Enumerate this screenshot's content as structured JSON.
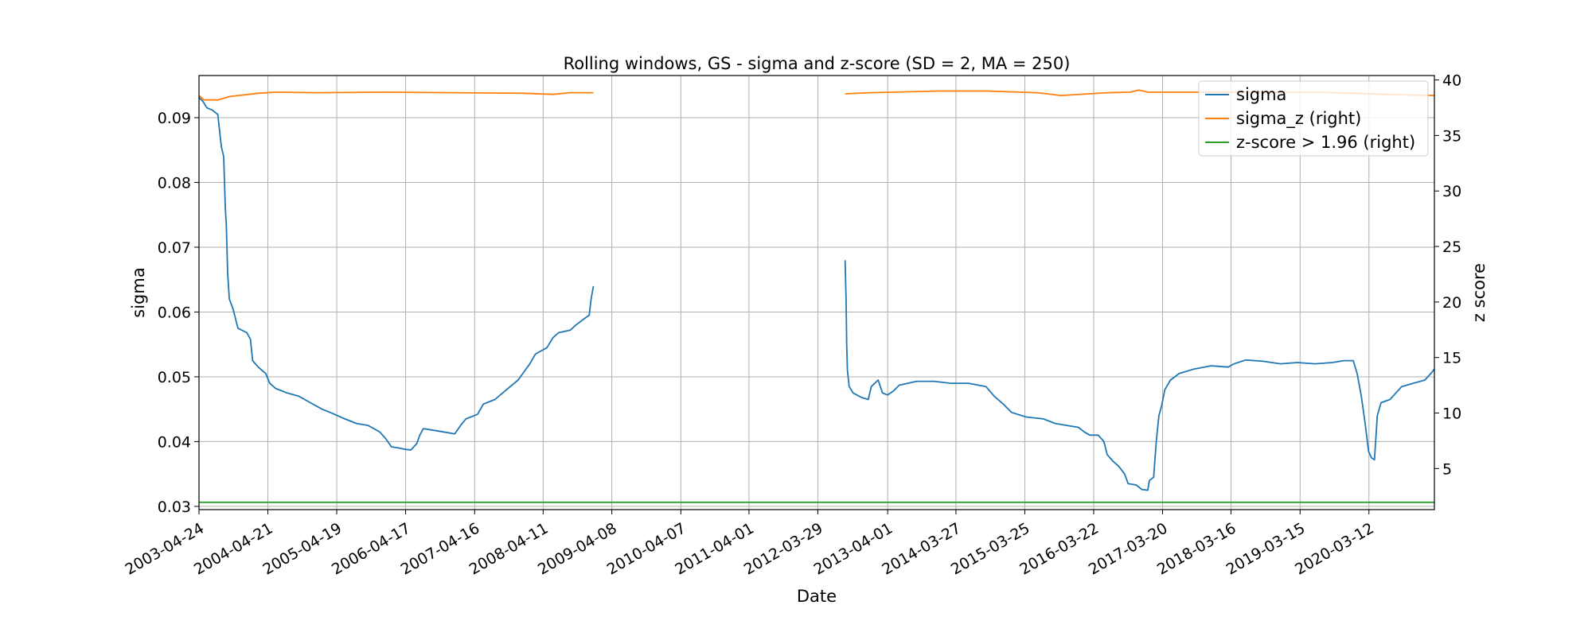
{
  "chart_data": {
    "type": "line",
    "title": "Rolling windows, GS - sigma and z-score (SD = 2, MA = 250)",
    "xlabel": "Date",
    "ylabel": "sigma",
    "ylabel_right": "z score",
    "x_tick_labels": [
      "2003-04-24",
      "2004-04-21",
      "2005-04-19",
      "2006-04-17",
      "2007-04-16",
      "2008-04-11",
      "2009-04-08",
      "2010-04-07",
      "2011-04-01",
      "2012-03-29",
      "2013-04-01",
      "2014-03-27",
      "2015-03-25",
      "2016-03-22",
      "2017-03-20",
      "2018-03-16",
      "2019-03-15",
      "2020-03-12"
    ],
    "xlim": [
      "2003-04-24",
      "2021-02-20"
    ],
    "ylim": [
      0.0295,
      0.0965
    ],
    "y_ticks": [
      0.03,
      0.04,
      0.05,
      0.06,
      0.07,
      0.08,
      0.09
    ],
    "y_tick_labels": [
      "0.03",
      "0.04",
      "0.05",
      "0.06",
      "0.07",
      "0.08",
      "0.09"
    ],
    "ylim_right": [
      1.3,
      40.4
    ],
    "y_ticks_right": [
      5,
      10,
      15,
      20,
      25,
      30,
      35,
      40
    ],
    "y_tick_labels_right": [
      "5",
      "10",
      "15",
      "20",
      "25",
      "30",
      "35",
      "40"
    ],
    "grid": true,
    "legend_position": "top-right",
    "series": [
      {
        "name": "sigma",
        "axis": "left",
        "color": "#1f77b4",
        "segments": [
          [
            [
              "2003-04-24",
              0.0931
            ],
            [
              "2003-05-15",
              0.0925
            ],
            [
              "2003-06-05",
              0.0915
            ],
            [
              "2003-07-01",
              0.0912
            ],
            [
              "2003-08-01",
              0.0905
            ],
            [
              "2003-08-20",
              0.0855
            ],
            [
              "2003-09-01",
              0.084
            ],
            [
              "2003-09-10",
              0.076
            ],
            [
              "2003-09-15",
              0.0735
            ],
            [
              "2003-09-22",
              0.066
            ],
            [
              "2003-10-01",
              0.062
            ],
            [
              "2003-10-20",
              0.0605
            ],
            [
              "2003-11-15",
              0.0575
            ],
            [
              "2004-01-01",
              0.0568
            ],
            [
              "2004-01-20",
              0.0558
            ],
            [
              "2004-02-01",
              0.0525
            ],
            [
              "2004-03-01",
              0.0515
            ],
            [
              "2004-04-10",
              0.0505
            ],
            [
              "2004-05-01",
              0.049
            ],
            [
              "2004-06-01",
              0.0482
            ],
            [
              "2004-08-01",
              0.0475
            ],
            [
              "2004-10-01",
              0.047
            ],
            [
              "2004-12-01",
              0.046
            ],
            [
              "2005-02-01",
              0.045
            ],
            [
              "2005-04-01",
              0.0443
            ],
            [
              "2005-06-01",
              0.0435
            ],
            [
              "2005-08-01",
              0.0428
            ],
            [
              "2005-10-01",
              0.0425
            ],
            [
              "2005-12-01",
              0.0415
            ],
            [
              "2006-01-01",
              0.0405
            ],
            [
              "2006-02-01",
              0.0392
            ],
            [
              "2006-03-15",
              0.039
            ],
            [
              "2006-04-15",
              0.0388
            ],
            [
              "2006-05-15",
              0.0387
            ],
            [
              "2006-06-15",
              0.0397
            ],
            [
              "2006-07-01",
              0.041
            ],
            [
              "2006-07-20",
              0.042
            ],
            [
              "2006-09-01",
              0.0418
            ],
            [
              "2006-11-01",
              0.0415
            ],
            [
              "2007-01-01",
              0.0412
            ],
            [
              "2007-02-01",
              0.0425
            ],
            [
              "2007-03-01",
              0.0435
            ],
            [
              "2007-05-01",
              0.0442
            ],
            [
              "2007-06-01",
              0.0458
            ],
            [
              "2007-08-01",
              0.0465
            ],
            [
              "2007-10-01",
              0.048
            ],
            [
              "2007-12-01",
              0.0495
            ],
            [
              "2008-02-01",
              0.052
            ],
            [
              "2008-03-01",
              0.0535
            ],
            [
              "2008-05-01",
              0.0545
            ],
            [
              "2008-06-01",
              0.056
            ],
            [
              "2008-07-01",
              0.0568
            ],
            [
              "2008-09-01",
              0.0572
            ],
            [
              "2008-10-01",
              0.058
            ],
            [
              "2008-11-15",
              0.059
            ],
            [
              "2008-12-10",
              0.0595
            ],
            [
              "2008-12-20",
              0.062
            ],
            [
              "2009-01-01",
              0.064
            ]
          ],
          [
            [
              "2012-08-20",
              0.068
            ],
            [
              "2012-08-25",
              0.062
            ],
            [
              "2012-08-28",
              0.055
            ],
            [
              "2012-09-01",
              0.051
            ],
            [
              "2012-09-10",
              0.0485
            ],
            [
              "2012-10-01",
              0.0475
            ],
            [
              "2012-11-15",
              0.0468
            ],
            [
              "2012-12-20",
              0.0465
            ],
            [
              "2013-01-05",
              0.0485
            ],
            [
              "2013-02-10",
              0.0495
            ],
            [
              "2013-03-05",
              0.0475
            ],
            [
              "2013-04-01",
              0.0472
            ],
            [
              "2013-05-01",
              0.0478
            ],
            [
              "2013-06-01",
              0.0487
            ],
            [
              "2013-09-01",
              0.0493
            ],
            [
              "2013-12-01",
              0.0493
            ],
            [
              "2014-03-01",
              0.049
            ],
            [
              "2014-06-01",
              0.049
            ],
            [
              "2014-09-01",
              0.0485
            ],
            [
              "2014-10-15",
              0.047
            ],
            [
              "2014-12-01",
              0.0458
            ],
            [
              "2015-01-15",
              0.0445
            ],
            [
              "2015-04-01",
              0.0438
            ],
            [
              "2015-07-01",
              0.0435
            ],
            [
              "2015-09-01",
              0.0428
            ],
            [
              "2015-11-01",
              0.0425
            ],
            [
              "2016-01-01",
              0.0422
            ],
            [
              "2016-02-01",
              0.0415
            ],
            [
              "2016-03-01",
              0.041
            ],
            [
              "2016-04-15",
              0.041
            ],
            [
              "2016-05-15",
              0.04
            ],
            [
              "2016-06-01",
              0.038
            ],
            [
              "2016-07-01",
              0.037
            ],
            [
              "2016-08-01",
              0.0362
            ],
            [
              "2016-09-01",
              0.035
            ],
            [
              "2016-09-20",
              0.0335
            ],
            [
              "2016-11-01",
              0.0333
            ],
            [
              "2016-12-01",
              0.0326
            ],
            [
              "2017-01-01",
              0.0325
            ],
            [
              "2017-01-10",
              0.034
            ],
            [
              "2017-02-01",
              0.0345
            ],
            [
              "2017-02-15",
              0.04
            ],
            [
              "2017-03-01",
              0.044
            ],
            [
              "2017-03-15",
              0.0455
            ],
            [
              "2017-04-01",
              0.048
            ],
            [
              "2017-05-01",
              0.0495
            ],
            [
              "2017-06-15",
              0.0505
            ],
            [
              "2017-09-01",
              0.0512
            ],
            [
              "2017-12-01",
              0.0517
            ],
            [
              "2018-03-01",
              0.0515
            ],
            [
              "2018-04-01",
              0.052
            ],
            [
              "2018-06-01",
              0.0526
            ],
            [
              "2018-09-01",
              0.0524
            ],
            [
              "2018-12-01",
              0.052
            ],
            [
              "2019-03-01",
              0.0522
            ],
            [
              "2019-06-01",
              0.052
            ],
            [
              "2019-09-01",
              0.0522
            ],
            [
              "2019-11-01",
              0.0525
            ],
            [
              "2019-12-20",
              0.0525
            ],
            [
              "2020-01-10",
              0.0505
            ],
            [
              "2020-02-01",
              0.047
            ],
            [
              "2020-02-20",
              0.043
            ],
            [
              "2020-03-10",
              0.0385
            ],
            [
              "2020-03-25",
              0.0375
            ],
            [
              "2020-04-10",
              0.0372
            ],
            [
              "2020-04-25",
              0.044
            ],
            [
              "2020-05-15",
              0.046
            ],
            [
              "2020-07-01",
              0.0465
            ],
            [
              "2020-08-01",
              0.0475
            ],
            [
              "2020-09-01",
              0.0485
            ],
            [
              "2020-11-01",
              0.049
            ],
            [
              "2021-01-01",
              0.0495
            ],
            [
              "2021-02-01",
              0.0505
            ],
            [
              "2021-02-20",
              0.0512
            ]
          ]
        ]
      },
      {
        "name": "sigma_z (right)",
        "axis": "right",
        "color": "#ff7f0e",
        "segments": [
          [
            [
              "2003-04-24",
              38.6
            ],
            [
              "2003-05-20",
              38.2
            ],
            [
              "2003-08-01",
              38.2
            ],
            [
              "2003-10-01",
              38.5
            ],
            [
              "2004-03-01",
              38.8
            ],
            [
              "2004-06-01",
              38.9
            ],
            [
              "2005-01-01",
              38.85
            ],
            [
              "2006-01-01",
              38.9
            ],
            [
              "2007-01-01",
              38.85
            ],
            [
              "2008-01-01",
              38.8
            ],
            [
              "2008-06-01",
              38.7
            ],
            [
              "2008-09-01",
              38.85
            ],
            [
              "2009-01-01",
              38.85
            ]
          ],
          [
            [
              "2012-08-20",
              38.75
            ],
            [
              "2013-01-01",
              38.85
            ],
            [
              "2014-01-01",
              39.0
            ],
            [
              "2014-09-01",
              39.0
            ],
            [
              "2015-06-01",
              38.85
            ],
            [
              "2015-10-01",
              38.6
            ],
            [
              "2016-06-01",
              38.85
            ],
            [
              "2016-10-01",
              38.9
            ],
            [
              "2016-11-15",
              39.1
            ],
            [
              "2017-01-01",
              38.9
            ],
            [
              "2018-01-01",
              38.9
            ],
            [
              "2019-06-01",
              38.9
            ],
            [
              "2020-01-01",
              38.8
            ],
            [
              "2020-06-01",
              38.7
            ],
            [
              "2021-02-20",
              38.6
            ]
          ]
        ]
      },
      {
        "name": "z-score > 1.96 (right)",
        "axis": "right",
        "color": "#2ca02c",
        "segments": [
          [
            [
              "2003-04-24",
              1.96
            ],
            [
              "2021-02-20",
              1.96
            ]
          ]
        ]
      }
    ]
  }
}
